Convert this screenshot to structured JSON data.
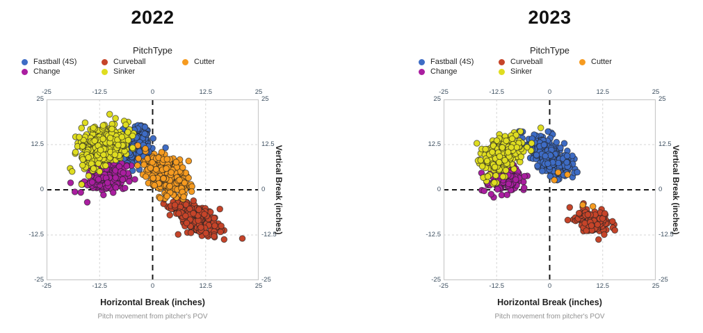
{
  "style": {
    "background": "#ffffff",
    "title_color": "#111111",
    "legend_text_color": "#1f1f1f",
    "tick_label_color": "#3d4f60",
    "axis_label_color": "#1f1f1f",
    "caption_color": "#909090",
    "frame_color": "#c9c9c9",
    "grid_line_color": "#d6d6d6",
    "zero_line_color": "#151515",
    "point_stroke_color": "rgba(35,35,35,0.65)"
  },
  "chart_data": [
    {
      "type": "scatter",
      "title": "2022",
      "legend": {
        "title": "PitchType",
        "position": "top"
      },
      "xlabel": "Horizontal Break (inches)",
      "ylabel": "Vertical Break (inches)",
      "caption": "Pitch movement from pitcher's POV",
      "xlim": [
        -25,
        25
      ],
      "ylim": [
        -25,
        25
      ],
      "x_tick_labels": [
        "-25",
        "-12.5",
        "0",
        "12.5",
        "25"
      ],
      "x_tick_values": [
        -25,
        -12.5,
        0,
        12.5,
        25
      ],
      "y_tick_labels": [
        "25",
        "12.5",
        "0",
        "-12.5",
        "-25"
      ],
      "y_tick_values": [
        25,
        12.5,
        0,
        -12.5,
        -25
      ],
      "grid": {
        "dashed_gridlines_at": [
          -12.5,
          12.5
        ],
        "dashed_zero_lines": true
      },
      "series": [
        {
          "name": "Fastball (4S)",
          "color": "#3E6CC5",
          "n": 260,
          "center": [
            -4.3,
            12.3
          ],
          "sd": [
            2.0,
            2.6
          ],
          "corr": 0.2
        },
        {
          "name": "Curveball",
          "color": "#C64429",
          "n": 270,
          "center": [
            9.8,
            -7.3
          ],
          "sd": [
            2.7,
            2.4
          ],
          "corr": -0.55
        },
        {
          "name": "Cutter",
          "color": "#F69B20",
          "n": 330,
          "center": [
            3.0,
            4.2
          ],
          "sd": [
            2.5,
            2.7
          ],
          "corr": -0.45
        },
        {
          "name": "Change",
          "color": "#AA1EA0",
          "n": 200,
          "center": [
            -10.8,
            3.4
          ],
          "sd": [
            2.5,
            1.9
          ],
          "corr": 0.15
        },
        {
          "name": "Sinker",
          "color": "#DFDD20",
          "n": 430,
          "center": [
            -11.6,
            11.8
          ],
          "sd": [
            3.0,
            2.7
          ],
          "corr": 0.25
        }
      ],
      "legend_order": [
        "Fastball (4S)",
        "Curveball",
        "Cutter",
        "Change",
        "Sinker"
      ]
    },
    {
      "type": "scatter",
      "title": "2023",
      "legend": {
        "title": "PitchType",
        "position": "top"
      },
      "xlabel": "Horizontal Break (inches)",
      "ylabel": "Vertical Break (inches)",
      "caption": "Pitch movement from pitcher's POV",
      "xlim": [
        -25,
        25
      ],
      "ylim": [
        -25,
        25
      ],
      "x_tick_labels": [
        "-25",
        "-12.5",
        "0",
        "12.5",
        "25"
      ],
      "x_tick_values": [
        -25,
        -12.5,
        0,
        12.5,
        25
      ],
      "y_tick_labels": [
        "25",
        "12.5",
        "0",
        "-12.5",
        "-25"
      ],
      "y_tick_values": [
        25,
        12.5,
        0,
        -12.5,
        -25
      ],
      "grid": {
        "dashed_gridlines_at": [
          -12.5,
          12.5
        ],
        "dashed_zero_lines": true
      },
      "series": [
        {
          "name": "Fastball (4S)",
          "color": "#3E6CC5",
          "n": 300,
          "center": [
            -0.3,
            9.3
          ],
          "sd": [
            2.7,
            2.8
          ],
          "corr": -0.62
        },
        {
          "name": "Curveball",
          "color": "#C64429",
          "n": 140,
          "center": [
            10.4,
            -8.8
          ],
          "sd": [
            2.1,
            1.6
          ],
          "corr": -0.2
        },
        {
          "name": "Cutter",
          "color": "#F69B20",
          "points": [
            [
              2.0,
              4.8
            ],
            [
              4.2,
              4.2
            ],
            [
              1.1,
              2.7
            ],
            [
              7.8,
              -4.2
            ],
            [
              10.2,
              -4.6
            ]
          ]
        },
        {
          "name": "Change",
          "color": "#AA1EA0",
          "n": 130,
          "center": [
            -10.2,
            2.6
          ],
          "sd": [
            2.0,
            1.7
          ],
          "corr": 0.2
        },
        {
          "name": "Sinker",
          "color": "#DFDD20",
          "n": 260,
          "center": [
            -11.3,
            9.6
          ],
          "sd": [
            2.6,
            2.7
          ],
          "corr": 0.3
        }
      ],
      "legend_order": [
        "Fastball (4S)",
        "Curveball",
        "Cutter",
        "Change",
        "Sinker"
      ]
    }
  ]
}
